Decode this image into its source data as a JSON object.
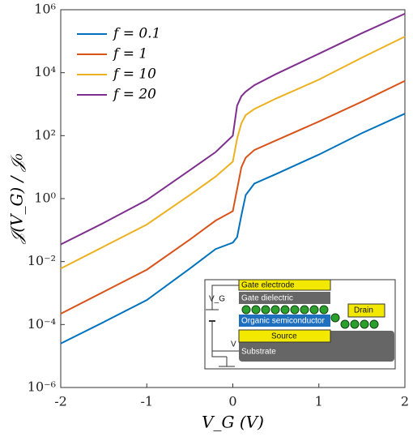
{
  "chart_data": {
    "type": "line",
    "log_y": true,
    "x_label": "V_G (V)",
    "y_label": "𝒥(V_G) / 𝒥₀",
    "x": [
      -2,
      -1.5,
      -1,
      -0.5,
      -0.2,
      0,
      0.05,
      0.1,
      0.15,
      0.25,
      0.5,
      1,
      1.5,
      2
    ],
    "series": [
      {
        "name": "f = 0.1",
        "color": "#0072bd",
        "values": [
          2.5e-05,
          0.00012,
          0.0006,
          0.006,
          0.025,
          0.04,
          0.06,
          0.3,
          1.3,
          3,
          6,
          25,
          120,
          500
        ]
      },
      {
        "name": "f = 1",
        "color": "#d95319",
        "values": [
          0.00022,
          0.0011,
          0.0055,
          0.05,
          0.2,
          0.4,
          2,
          10,
          20,
          35,
          70,
          280,
          1200,
          5500
        ]
      },
      {
        "name": "f = 10",
        "color": "#edb120",
        "values": [
          0.006,
          0.03,
          0.15,
          1.3,
          5,
          15,
          80,
          250,
          450,
          700,
          1500,
          6000,
          30000,
          140000
        ]
      },
      {
        "name": "f = 20",
        "color": "#7e2f8e",
        "values": [
          0.035,
          0.17,
          0.9,
          8,
          30,
          100,
          900,
          1800,
          2500,
          4000,
          9000,
          40000,
          180000,
          750000
        ]
      }
    ],
    "xlim": [
      -2,
      2
    ],
    "xticks": [
      -2,
      -1,
      0,
      1,
      2
    ],
    "ylim": [
      1e-06,
      1000000.0
    ],
    "yticks": [
      {
        "value": 1e-06,
        "label": "10⁻⁶"
      },
      {
        "value": 0.0001,
        "label": "10⁻⁴"
      },
      {
        "value": 0.01,
        "label": "10⁻²"
      },
      {
        "value": 1,
        "label": "10⁰"
      },
      {
        "value": 100,
        "label": "10²"
      },
      {
        "value": 10000,
        "label": "10⁴"
      },
      {
        "value": 1000000,
        "label": "10⁶"
      }
    ],
    "legend": "upper left"
  },
  "inset": {
    "gate_electrode": "Gate electrode",
    "gate_dielectric": "Gate dielectric",
    "semiconductor": "Organic semiconductor",
    "source": "Source",
    "drain": "Drain",
    "substrate": "Substrate",
    "vg": "V_G",
    "v": "V"
  }
}
